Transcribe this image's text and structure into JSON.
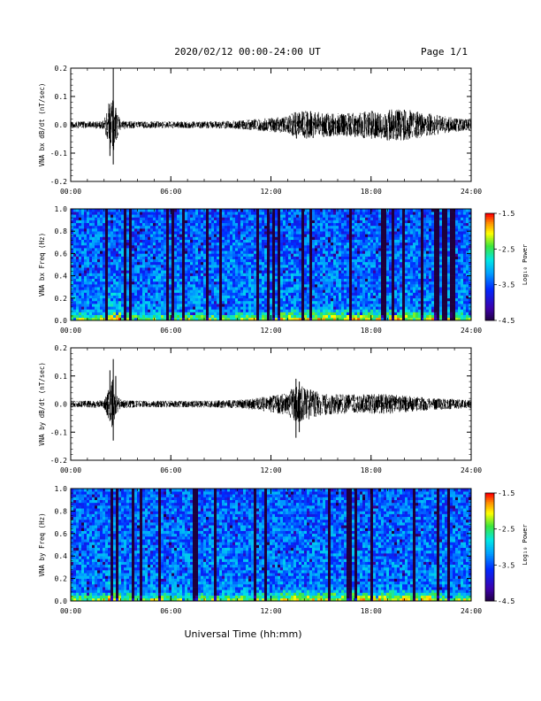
{
  "header": {
    "title": "2020/02/12  00:00-24:00 UT",
    "page": "Page 1/1"
  },
  "colors": {
    "trace": "#000000",
    "background": "#ffffff"
  },
  "chart_data": [
    {
      "type": "line",
      "ylabel": "VNA bx dB/dt (nT/sec)",
      "xticks": [
        "00:00",
        "06:00",
        "12:00",
        "18:00",
        "24:00"
      ],
      "xlim_hours": [
        0,
        24
      ],
      "yticks": [
        "0.2",
        "0.1",
        "0.0",
        "-0.1",
        "-0.2"
      ],
      "ylim": [
        -0.2,
        0.2
      ],
      "envelope": {
        "hours": [
          0,
          1,
          2,
          2.3,
          2.5,
          2.7,
          3,
          4,
          6,
          8,
          10,
          11,
          12,
          13,
          13.5,
          14,
          15,
          16,
          17,
          18,
          19,
          20,
          21,
          22,
          23,
          24
        ],
        "amplitude": [
          0.012,
          0.012,
          0.015,
          0.08,
          0.12,
          0.06,
          0.015,
          0.012,
          0.012,
          0.012,
          0.015,
          0.02,
          0.025,
          0.03,
          0.05,
          0.05,
          0.045,
          0.04,
          0.045,
          0.05,
          0.055,
          0.055,
          0.045,
          0.035,
          0.025,
          0.02
        ]
      },
      "spikes": [
        {
          "hour": 2.35,
          "min": -0.11,
          "max": 0.04
        },
        {
          "hour": 2.55,
          "min": -0.14,
          "max": 0.2
        },
        {
          "hour": 2.7,
          "min": -0.04,
          "max": 0.06
        }
      ]
    },
    {
      "type": "heatmap",
      "ylabel": "VNA bx Freq (Hz)",
      "xticks": [
        "00:00",
        "06:00",
        "12:00",
        "18:00",
        "24:00"
      ],
      "xlim_hours": [
        0,
        24
      ],
      "yticks": [
        "1.0",
        "0.8",
        "0.6",
        "0.4",
        "0.2",
        "0.0"
      ],
      "ylim": [
        0,
        1.0
      ],
      "colorbar": {
        "label": "Log₁₀ Power",
        "ticks": [
          "-1.5",
          "-2.5",
          "-3.5",
          "-4.5"
        ],
        "range": [
          -4.5,
          -1.5
        ]
      },
      "seed": 17
    },
    {
      "type": "line",
      "ylabel": "VNA by dB/dt (nT/sec)",
      "xticks": [
        "00:00",
        "06:00",
        "12:00",
        "18:00",
        "24:00"
      ],
      "xlim_hours": [
        0,
        24
      ],
      "yticks": [
        "0.2",
        "0.1",
        "0.0",
        "-0.1",
        "-0.2"
      ],
      "ylim": [
        -0.2,
        0.2
      ],
      "envelope": {
        "hours": [
          0,
          1,
          2,
          2.3,
          2.5,
          2.7,
          3,
          4,
          6,
          8,
          10,
          11,
          12,
          13,
          13.5,
          14,
          15,
          16,
          17,
          18,
          19,
          20,
          21,
          22,
          23,
          24
        ],
        "amplitude": [
          0.012,
          0.012,
          0.015,
          0.06,
          0.09,
          0.04,
          0.015,
          0.012,
          0.012,
          0.012,
          0.015,
          0.02,
          0.03,
          0.04,
          0.07,
          0.06,
          0.04,
          0.035,
          0.035,
          0.035,
          0.035,
          0.03,
          0.025,
          0.02,
          0.018,
          0.015
        ]
      },
      "spikes": [
        {
          "hour": 2.35,
          "min": -0.06,
          "max": 0.12
        },
        {
          "hour": 2.55,
          "min": -0.13,
          "max": 0.16
        },
        {
          "hour": 2.7,
          "min": -0.03,
          "max": 0.1
        },
        {
          "hour": 13.5,
          "min": -0.12,
          "max": 0.09
        },
        {
          "hour": 13.7,
          "min": -0.1,
          "max": 0.08
        }
      ]
    },
    {
      "type": "heatmap",
      "ylabel": "VNA by Freq (Hz)",
      "xticks": [
        "00:00",
        "06:00",
        "12:00",
        "18:00",
        "24:00"
      ],
      "xlim_hours": [
        0,
        24
      ],
      "yticks": [
        "1.0",
        "0.8",
        "0.6",
        "0.4",
        "0.2",
        "0.0"
      ],
      "ylim": [
        0,
        1.0
      ],
      "colorbar": {
        "label": "Log₁₀ Power",
        "ticks": [
          "-1.5",
          "-2.5",
          "-3.5",
          "-4.5"
        ],
        "range": [
          -4.5,
          -1.5
        ]
      },
      "seed": 29
    }
  ],
  "xtitle": "Universal Time (hh:mm)"
}
